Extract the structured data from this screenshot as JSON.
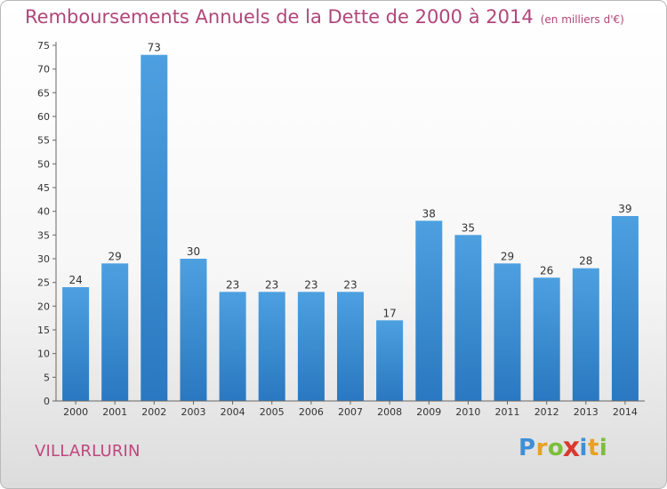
{
  "chart_data": {
    "type": "bar",
    "title": "Remboursements Annuels de la Dette de 2000 à 2014",
    "unit": "(en milliers d'€)",
    "categories": [
      "2000",
      "2001",
      "2002",
      "2003",
      "2004",
      "2005",
      "2006",
      "2007",
      "2008",
      "2009",
      "2010",
      "2011",
      "2012",
      "2013",
      "2014"
    ],
    "values": [
      24,
      29,
      73,
      30,
      23,
      23,
      23,
      23,
      17,
      38,
      35,
      29,
      26,
      28,
      39
    ],
    "ylim": [
      0,
      75
    ],
    "yticks": [
      0,
      5,
      10,
      15,
      20,
      25,
      30,
      35,
      40,
      45,
      50,
      55,
      60,
      65,
      70,
      75
    ],
    "grid": false,
    "bar_color": "#4da0e0",
    "bar_color_dark": "#2a78c0"
  },
  "location": "VILLARLURIN",
  "logo": {
    "letters": [
      "P",
      "r",
      "o",
      "x",
      "i",
      "t",
      "i"
    ],
    "colors": [
      "#3e8fd6",
      "#e8a21f",
      "#7bbf3a",
      "#d9392f",
      "#3e8fd6",
      "#e8a21f",
      "#7bbf3a"
    ]
  },
  "colors": {
    "title": "#b0467a",
    "axis": "#666666"
  }
}
